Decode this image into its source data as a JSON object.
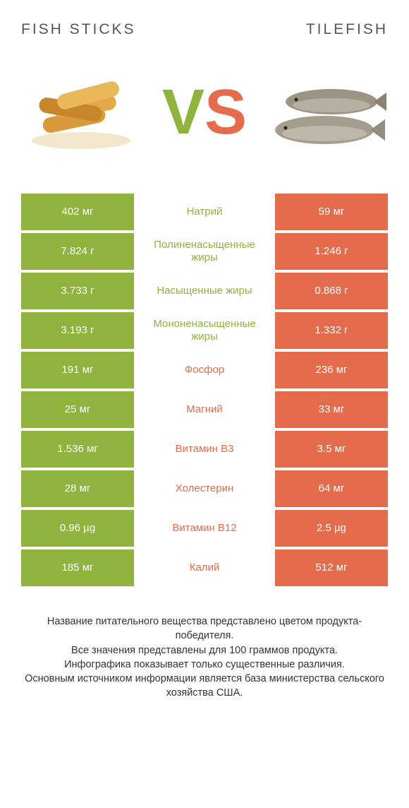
{
  "colors": {
    "left": "#8eb43d",
    "right": "#e46b4c",
    "label_left": "#8eb43d",
    "label_right": "#e46b4c",
    "vs_v": "#8eb43d",
    "vs_s": "#e46b4c",
    "title_text": "#555555",
    "footer_text": "#333333",
    "background": "#ffffff"
  },
  "titles": {
    "left": "Fish sticks",
    "right": "Tilefish"
  },
  "vs": {
    "v": "V",
    "s": "S"
  },
  "rows": [
    {
      "left": "402 мг",
      "label": "Натрий",
      "right": "59 мг",
      "winner": "left"
    },
    {
      "left": "7.824 г",
      "label": "Полиненасыщенные жиры",
      "right": "1.246 г",
      "winner": "left"
    },
    {
      "left": "3.733 г",
      "label": "Насыщенные жиры",
      "right": "0.868 г",
      "winner": "left"
    },
    {
      "left": "3.193 г",
      "label": "Мононенасыщенные жиры",
      "right": "1.332 г",
      "winner": "left"
    },
    {
      "left": "191 мг",
      "label": "Фосфор",
      "right": "236 мг",
      "winner": "right"
    },
    {
      "left": "25 мг",
      "label": "Магний",
      "right": "33 мг",
      "winner": "right"
    },
    {
      "left": "1.536 мг",
      "label": "Витамин B3",
      "right": "3.5 мг",
      "winner": "right"
    },
    {
      "left": "28 мг",
      "label": "Холестерин",
      "right": "64 мг",
      "winner": "right"
    },
    {
      "left": "0.96 µg",
      "label": "Витамин B12",
      "right": "2.5 µg",
      "winner": "right"
    },
    {
      "left": "185 мг",
      "label": "Калий",
      "right": "512 мг",
      "winner": "right"
    }
  ],
  "footer_lines": [
    "Название питательного вещества представлено цветом продукта-победителя.",
    "Все значения представлены для 100 граммов продукта.",
    "Инфографика показывает только существенные различия.",
    "Основным источником информации является база министерства сельского хозяйства США."
  ]
}
